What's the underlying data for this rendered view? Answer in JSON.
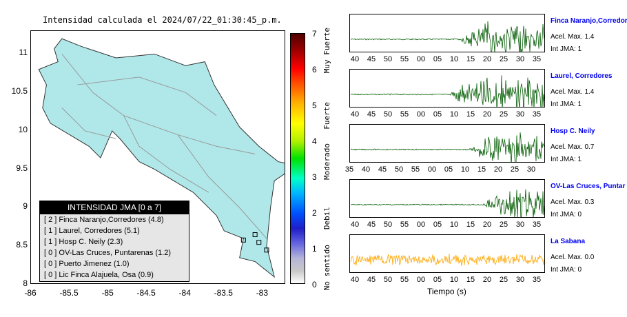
{
  "title": "Intensidad calculada el 2024/07/22_01:30:45_p.m.",
  "map": {
    "yticks": [
      "11",
      "10.5",
      "10",
      "9.5",
      "9",
      "8.5",
      "8"
    ],
    "xticks": [
      "-86",
      "-85.5",
      "-85",
      "-84.5",
      "-84",
      "-83.5",
      "-83"
    ],
    "land_color": "#b0e8ea"
  },
  "legend": {
    "title": "INTENSIDAD JMA [0 a 7]",
    "items": [
      "[ 2 ]  Finca Naranjo,Corredores (4.8)",
      "[ 1 ]  Laurel, Corredores (5.1)",
      "[ 1 ]  Hosp C. Neily (2.3)",
      "[ 0 ]  OV-Las Cruces, Puntarenas (1.2)",
      "[ 0 ]  Puerto Jimenez (1.0)",
      "[ 0 ]  Lic Finca Alajuela, Osa (0.9)"
    ]
  },
  "colorbar": {
    "ticks": [
      "7",
      "6",
      "5",
      "4",
      "3",
      "2",
      "1",
      "0"
    ],
    "categories": [
      "Muy Fuerte",
      "Fuerte",
      "Moderado",
      "Debil",
      "No sentido"
    ]
  },
  "chart_data": {
    "type": "line",
    "xlabel": "Tiempo (s)",
    "stations": [
      {
        "name": "Finca Naranjo,Corredor",
        "acel": "Acel. Max. 1.4",
        "int": "Int JMA: 1",
        "color": "#005a00",
        "ticks": [
          "40",
          "45",
          "50",
          "55",
          "00",
          "05",
          "10",
          "15",
          "20",
          "25",
          "30",
          "35"
        ],
        "onset": 0.55,
        "amp": 1.0
      },
      {
        "name": "Laurel, Corredores",
        "acel": "Acel. Max. 1.4",
        "int": "Int JMA: 1",
        "color": "#005a00",
        "ticks": [
          "40",
          "45",
          "50",
          "55",
          "00",
          "05",
          "10",
          "15",
          "20",
          "25",
          "30",
          "35"
        ],
        "onset": 0.5,
        "amp": 1.0
      },
      {
        "name": "Hosp C. Neily",
        "acel": "Acel. Max. 0.7",
        "int": "Int JMA: 1",
        "color": "#005a00",
        "ticks": [
          "35",
          "40",
          "45",
          "50",
          "55",
          "00",
          "05",
          "10",
          "15",
          "20",
          "25",
          "30"
        ],
        "onset": 0.6,
        "amp": 0.9
      },
      {
        "name": "OV-Las Cruces, Puntar",
        "acel": "Acel. Max. 0.3",
        "int": "Int JMA: 0",
        "color": "#005a00",
        "ticks": [
          "40",
          "45",
          "50",
          "55",
          "00",
          "05",
          "10",
          "15",
          "20",
          "25",
          "30",
          "35"
        ],
        "onset": 0.67,
        "amp": 0.95
      },
      {
        "name": "La Sabana",
        "acel": "Acel. Max. 0.0",
        "int": "Int JMA: 0",
        "color": "#ffa500",
        "ticks": [
          "40",
          "45",
          "50",
          "55",
          "00",
          "05",
          "10",
          "15",
          "20",
          "25",
          "30",
          "35"
        ],
        "onset": 0.0,
        "amp": 0.6
      }
    ]
  }
}
